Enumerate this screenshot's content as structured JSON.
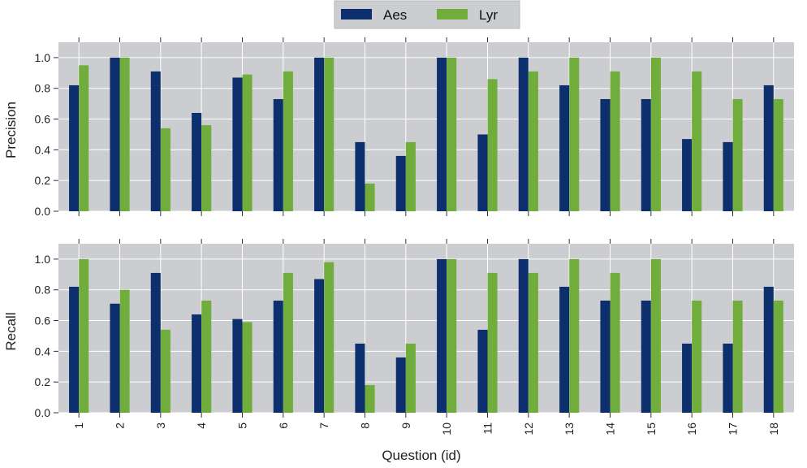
{
  "chart_data": {
    "type": "bar",
    "categories": [
      "1",
      "2",
      "3",
      "4",
      "5",
      "6",
      "7",
      "8",
      "9",
      "10",
      "11",
      "12",
      "13",
      "14",
      "15",
      "16",
      "17",
      "18"
    ],
    "xlabel": "Question (id)",
    "legend": {
      "placement": "top-center",
      "entries": [
        "Aes",
        "Lyr"
      ]
    },
    "grid": true,
    "colors": {
      "Aes": "#0d2f6e",
      "Lyr": "#71ad3c",
      "panel_bg": "#cbcdd0",
      "grid": "#ffffff"
    },
    "panels": [
      {
        "ylabel": "Precision",
        "ylim": [
          0,
          1.1
        ],
        "yticks": [
          "0.0",
          "0.2",
          "0.4",
          "0.6",
          "0.8",
          "1.0"
        ],
        "series": [
          {
            "name": "Aes",
            "values": [
              0.82,
              1.0,
              0.91,
              0.64,
              0.87,
              0.73,
              1.0,
              0.45,
              0.36,
              1.0,
              0.5,
              1.0,
              0.82,
              0.73,
              0.73,
              0.47,
              0.45,
              0.82
            ]
          },
          {
            "name": "Lyr",
            "values": [
              0.95,
              1.0,
              0.54,
              0.56,
              0.89,
              0.91,
              1.0,
              0.18,
              0.45,
              1.0,
              0.86,
              0.91,
              1.0,
              0.91,
              1.0,
              0.91,
              0.73,
              0.73
            ]
          }
        ]
      },
      {
        "ylabel": "Recall",
        "ylim": [
          0,
          1.1
        ],
        "yticks": [
          "0.0",
          "0.2",
          "0.4",
          "0.6",
          "0.8",
          "1.0"
        ],
        "series": [
          {
            "name": "Aes",
            "values": [
              0.82,
              0.71,
              0.91,
              0.64,
              0.61,
              0.73,
              0.87,
              0.45,
              0.36,
              1.0,
              0.54,
              1.0,
              0.82,
              0.73,
              0.73,
              0.45,
              0.45,
              0.82
            ]
          },
          {
            "name": "Lyr",
            "values": [
              1.0,
              0.8,
              0.54,
              0.73,
              0.59,
              0.91,
              0.98,
              0.18,
              0.45,
              1.0,
              0.91,
              0.91,
              1.0,
              0.91,
              1.0,
              0.73,
              0.73,
              0.73
            ]
          }
        ]
      }
    ]
  }
}
